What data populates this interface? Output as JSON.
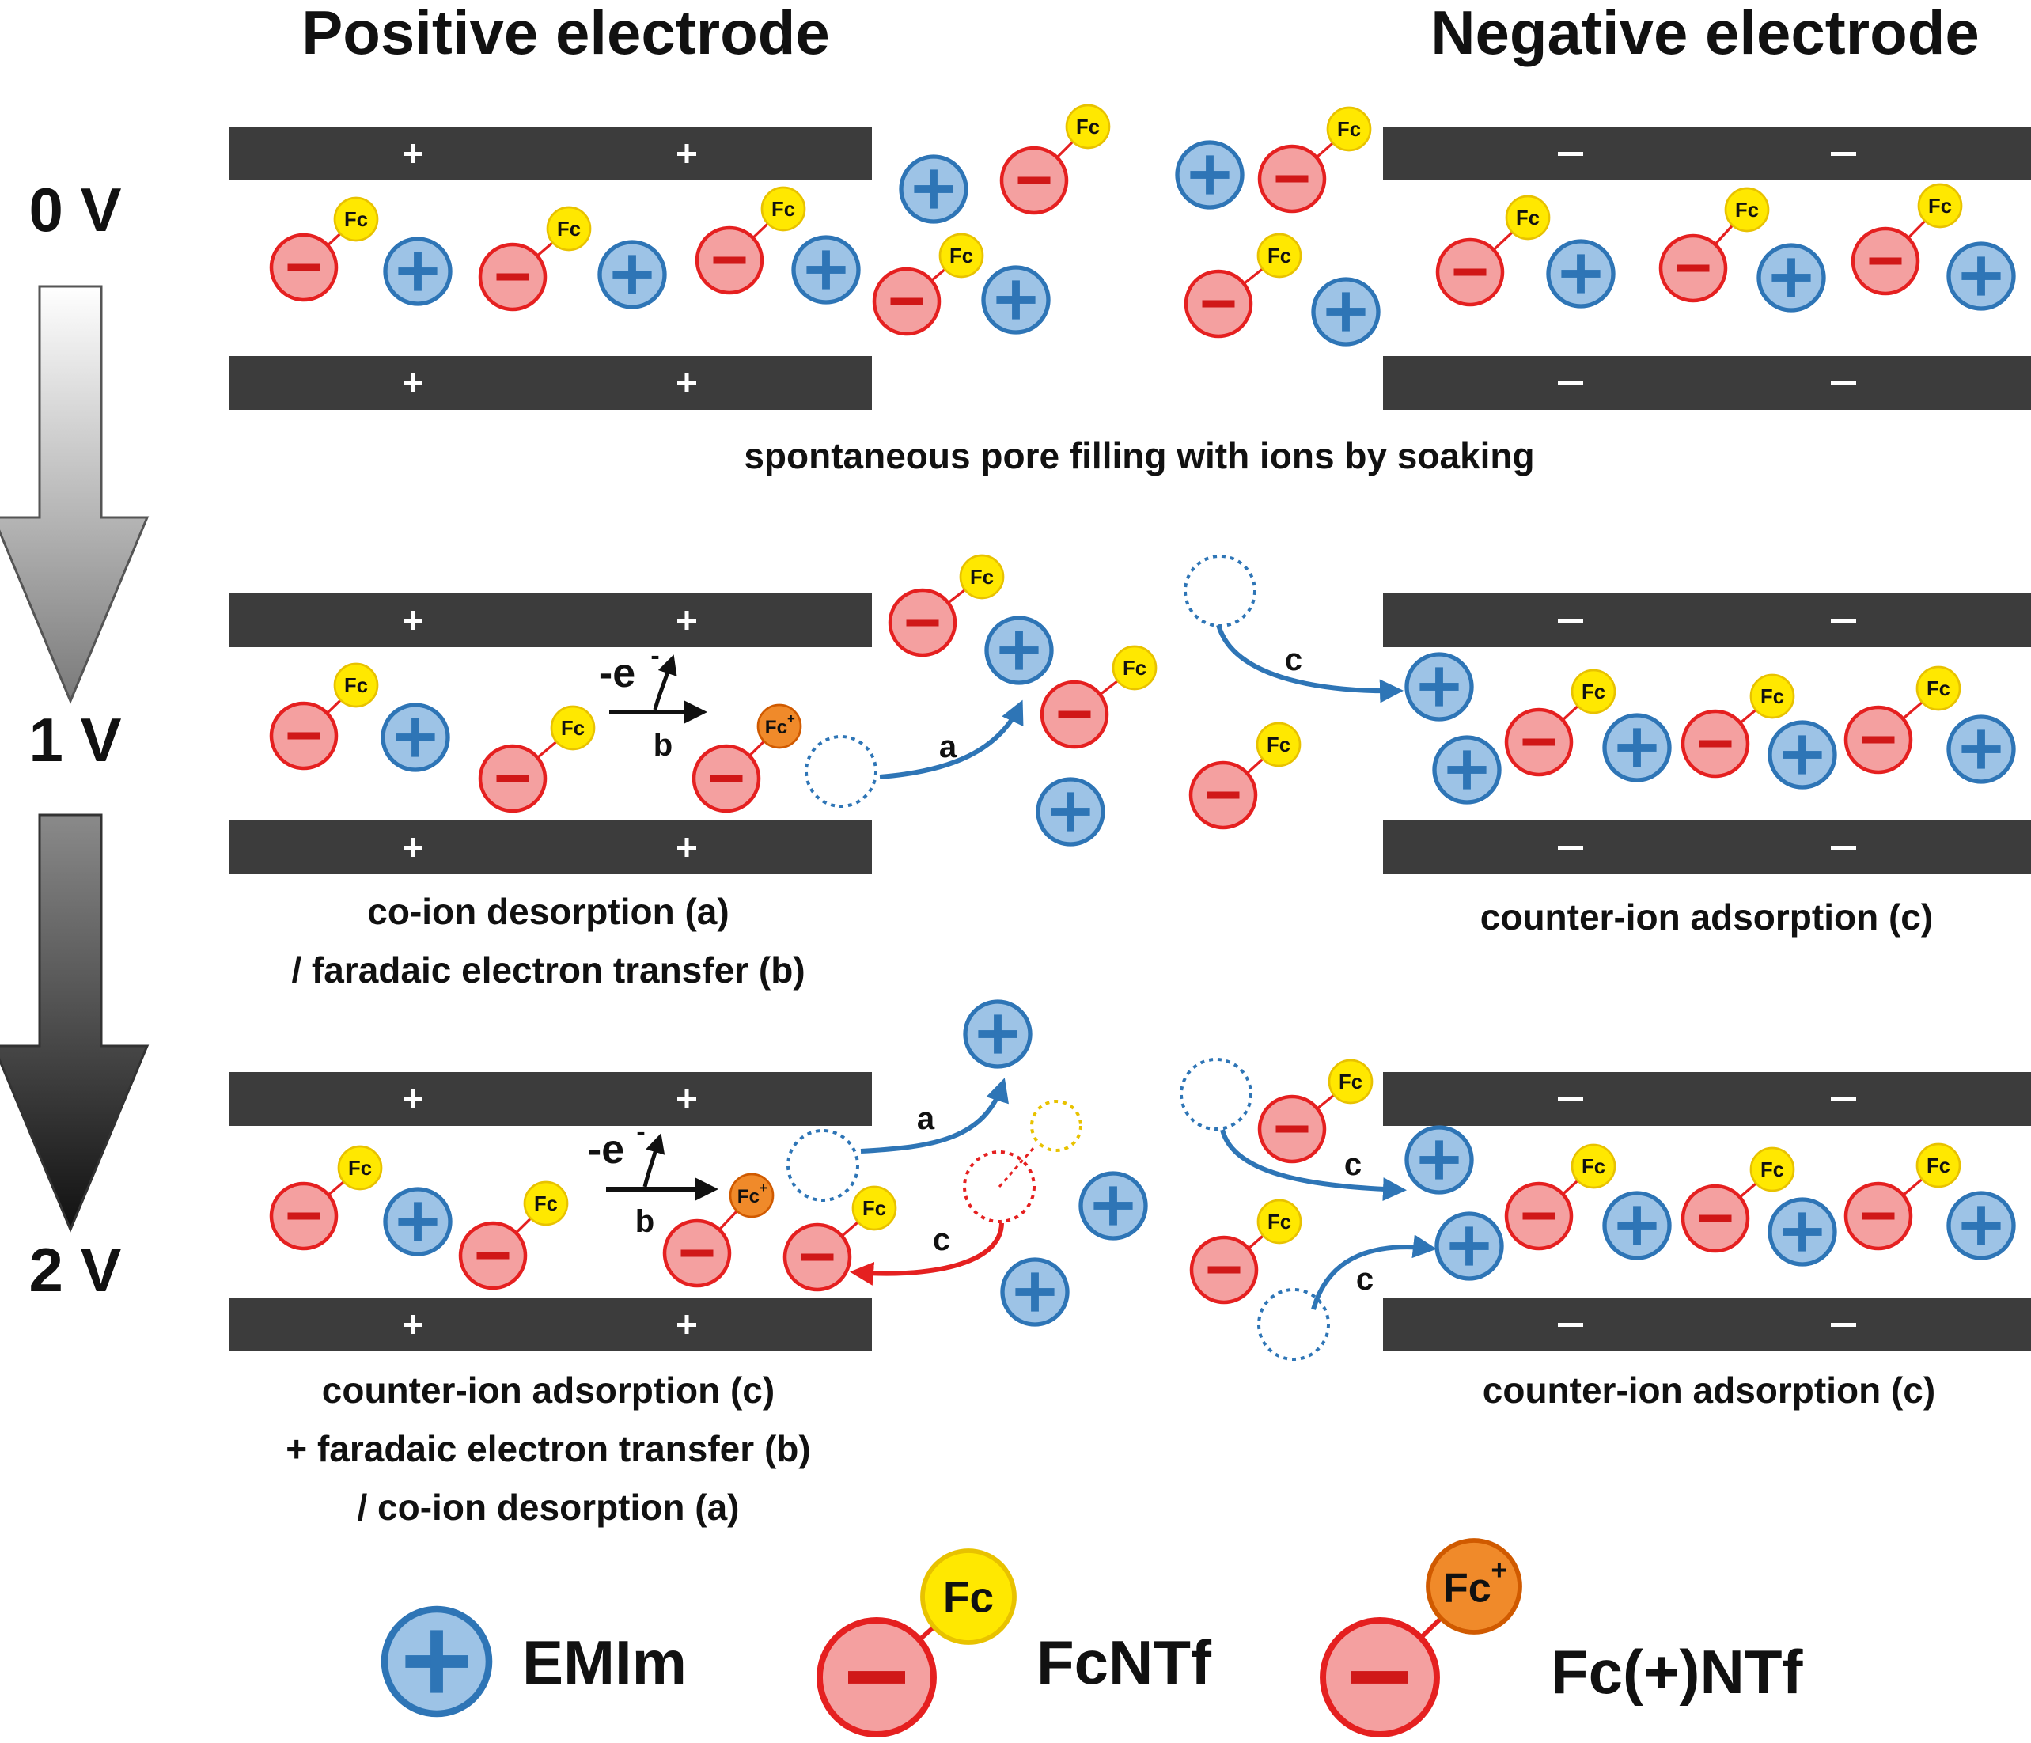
{
  "headings": {
    "positive": "Positive electrode",
    "negative": "Negative electrode"
  },
  "voltages": [
    "0 V",
    "1 V",
    "2 V"
  ],
  "symbols": {
    "plus": "+",
    "minus": "–",
    "fc": "Fc",
    "fc_plus_base": "Fc",
    "fc_plus_sup": "+",
    "electron_base": "-e",
    "electron_sup": "-"
  },
  "process_labels": {
    "a": "a",
    "b": "b",
    "c": "c"
  },
  "captions": {
    "row0": "spontaneous pore filling with ions by soaking",
    "row1_left": [
      "co-ion desorption (a)",
      "/ faradaic electron transfer (b)"
    ],
    "row1_right": "counter-ion adsorption (c)",
    "row2_left": [
      "counter-ion adsorption (c)",
      "+ faradaic electron transfer (b)",
      "/ co-ion desorption (a)"
    ],
    "row2_right": "counter-ion adsorption (c)"
  },
  "legend": {
    "cation": "EMIm",
    "anion": "FcNTf",
    "oxidized_anion": "Fc(+)NTf"
  },
  "colors": {
    "electrode": "#3c3c3c",
    "cation_fill": "#9dc3e6",
    "cation_stroke": "#2e75b6",
    "anion_fill": "#f4a0a0",
    "anion_stroke": "#e52020",
    "fc_fill": "#ffe800",
    "fc_stroke": "#e8c200",
    "fc_plus_fill": "#f08a2a",
    "fc_plus_stroke": "#d05a00",
    "arrow_blue": "#2e75b6",
    "arrow_red": "#e52020"
  }
}
